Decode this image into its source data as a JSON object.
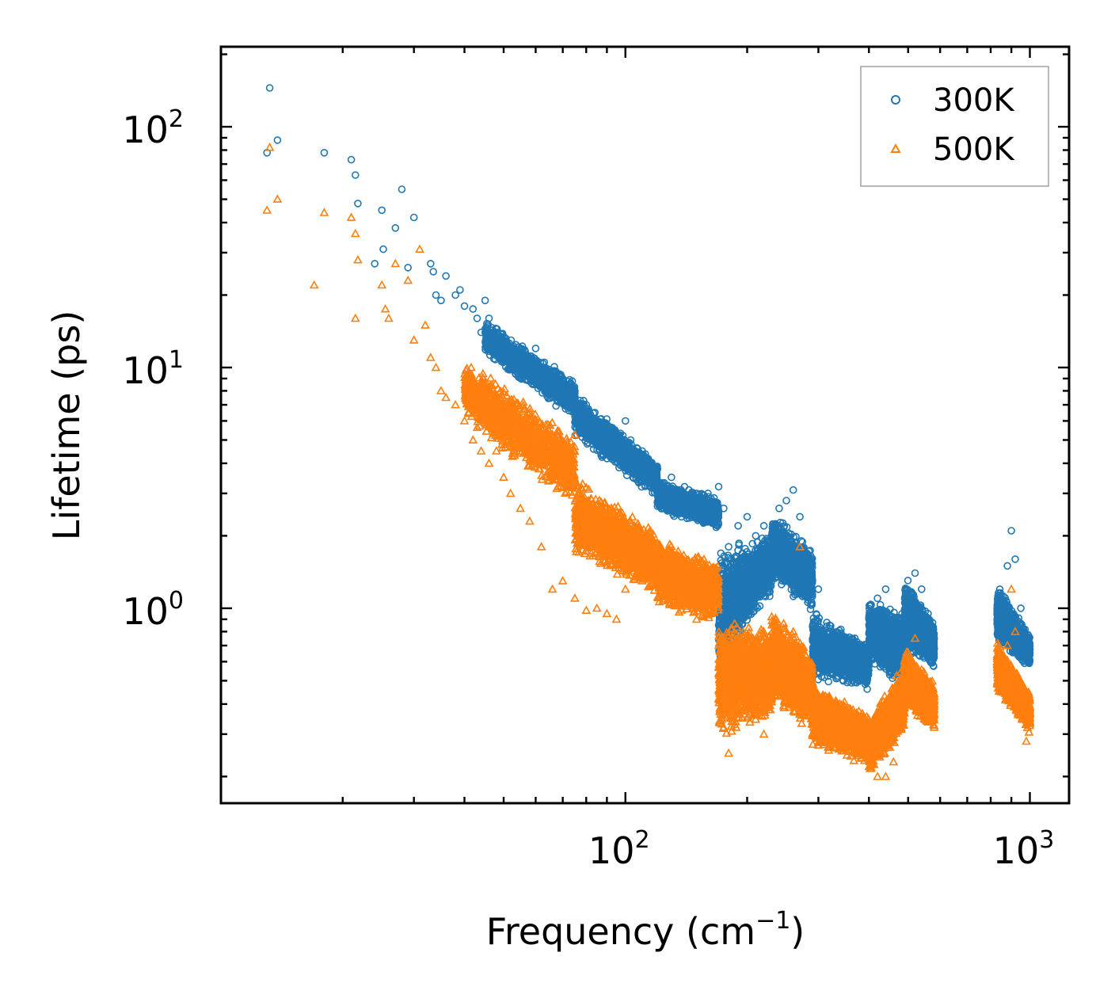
{
  "chart_data": {
    "type": "scatter",
    "title": "",
    "xlabel": "Frequency (cm",
    "xlabel_sup": "−1",
    "xlabel_end": ")",
    "ylabel": "Lifetime (ps)",
    "xscale": "log",
    "yscale": "log",
    "xlim": [
      10,
      1250
    ],
    "ylim": [
      0.155,
      215
    ],
    "x_ticks": [
      {
        "value": 100,
        "base": "10",
        "exp": "2"
      },
      {
        "value": 1000,
        "base": "10",
        "exp": "3"
      }
    ],
    "y_ticks": [
      {
        "value": 1,
        "base": "10",
        "exp": "0"
      },
      {
        "value": 10,
        "base": "10",
        "exp": "1"
      },
      {
        "value": 100,
        "base": "10",
        "exp": "2"
      }
    ],
    "legend": {
      "position": "upper-right"
    },
    "series": [
      {
        "name": "300K",
        "marker": "circle",
        "color": "#1f77b4",
        "points": [
          [
            13.2,
            145
          ],
          [
            13.8,
            88
          ],
          [
            13,
            78
          ],
          [
            18,
            78
          ],
          [
            21,
            73
          ],
          [
            21.5,
            63
          ],
          [
            21.8,
            48
          ],
          [
            24,
            27
          ],
          [
            25,
            45
          ],
          [
            25.2,
            31
          ],
          [
            27,
            38
          ],
          [
            28,
            55
          ],
          [
            29,
            26
          ],
          [
            30,
            42
          ],
          [
            33,
            27
          ],
          [
            33.5,
            25
          ],
          [
            34,
            20
          ],
          [
            35,
            19
          ],
          [
            36,
            24
          ],
          [
            38,
            20
          ],
          [
            39,
            21
          ],
          [
            40,
            18
          ],
          [
            42,
            17.5
          ],
          [
            43,
            16
          ],
          [
            44,
            14
          ],
          [
            45,
            19
          ],
          [
            46,
            16
          ],
          [
            48,
            14
          ],
          [
            50,
            13
          ],
          [
            52,
            12
          ],
          [
            55,
            12
          ],
          [
            58,
            11
          ],
          [
            60,
            12
          ],
          [
            63,
            10
          ],
          [
            66,
            9.5
          ],
          [
            70,
            9
          ],
          [
            75,
            8
          ],
          [
            80,
            7
          ],
          [
            85,
            6
          ],
          [
            90,
            5.5
          ],
          [
            95,
            5
          ],
          [
            100,
            6
          ],
          [
            110,
            4.5
          ],
          [
            115,
            4
          ],
          [
            120,
            3.8
          ],
          [
            130,
            3.5
          ],
          [
            140,
            3.2
          ],
          [
            150,
            3
          ],
          [
            160,
            3
          ],
          [
            170,
            3.2
          ],
          [
            175,
            2.6
          ],
          [
            180,
            1.8
          ],
          [
            190,
            2.2
          ],
          [
            200,
            2.4
          ],
          [
            210,
            2
          ],
          [
            220,
            2.2
          ],
          [
            240,
            2.6
          ],
          [
            250,
            2.8
          ],
          [
            260,
            3.1
          ],
          [
            270,
            2.4
          ],
          [
            280,
            1.6
          ],
          [
            300,
            1.2
          ],
          [
            320,
            0.85
          ],
          [
            340,
            0.7
          ],
          [
            360,
            0.6
          ],
          [
            380,
            0.55
          ],
          [
            400,
            0.9
          ],
          [
            420,
            1.1
          ],
          [
            440,
            1.2
          ],
          [
            460,
            0.9
          ],
          [
            480,
            0.7
          ],
          [
            500,
            1.1
          ],
          [
            520,
            1.4
          ],
          [
            540,
            1.2
          ],
          [
            560,
            0.95
          ],
          [
            580,
            0.75
          ],
          [
            850,
            1
          ],
          [
            880,
            1.5
          ],
          [
            900,
            2.1
          ],
          [
            920,
            1.6
          ],
          [
            950,
            1
          ],
          [
            980,
            0.7
          ]
        ],
        "bands": [
          {
            "f_from": 45,
            "f_to": 75,
            "lo_at_from": 11,
            "hi_at_from": 16,
            "lo_at_to": 6,
            "hi_at_to": 9
          },
          {
            "f_from": 75,
            "f_to": 120,
            "lo_at_from": 5,
            "hi_at_from": 8,
            "lo_at_to": 2.8,
            "hi_at_to": 4.2
          },
          {
            "f_from": 120,
            "f_to": 170,
            "lo_at_from": 2.5,
            "hi_at_from": 3.5,
            "lo_at_to": 2.1,
            "hi_at_to": 2.9
          },
          {
            "f_from": 170,
            "f_to": 230,
            "lo_at_from": 0.5,
            "hi_at_from": 1.9,
            "lo_at_to": 1.1,
            "hi_at_to": 2.1
          },
          {
            "f_from": 230,
            "f_to": 290,
            "lo_at_from": 1.3,
            "hi_at_from": 2.6,
            "lo_at_to": 0.95,
            "hi_at_to": 1.8
          },
          {
            "f_from": 290,
            "f_to": 400,
            "lo_at_from": 0.5,
            "hi_at_from": 1.0,
            "lo_at_to": 0.45,
            "hi_at_to": 0.72
          },
          {
            "f_from": 400,
            "f_to": 490,
            "lo_at_from": 0.6,
            "hi_at_from": 1.1,
            "lo_at_to": 0.45,
            "hi_at_to": 1.0
          },
          {
            "f_from": 490,
            "f_to": 580,
            "lo_at_from": 0.65,
            "hi_at_from": 1.4,
            "lo_at_to": 0.55,
            "hi_at_to": 0.9
          },
          {
            "f_from": 830,
            "f_to": 1000,
            "lo_at_from": 0.7,
            "hi_at_from": 1.3,
            "lo_at_to": 0.55,
            "hi_at_to": 0.8
          }
        ]
      },
      {
        "name": "500K",
        "marker": "triangle",
        "color": "#ff7f0e",
        "points": [
          [
            13.2,
            82
          ],
          [
            13.8,
            50
          ],
          [
            13,
            45
          ],
          [
            18,
            44
          ],
          [
            17,
            22
          ],
          [
            21,
            42
          ],
          [
            21.5,
            36
          ],
          [
            21.8,
            28
          ],
          [
            21.5,
            16
          ],
          [
            25,
            22
          ],
          [
            25.5,
            17.5
          ],
          [
            26,
            16
          ],
          [
            27,
            27
          ],
          [
            29,
            23
          ],
          [
            30,
            13
          ],
          [
            31,
            31
          ],
          [
            32,
            15
          ],
          [
            33,
            11
          ],
          [
            34,
            10
          ],
          [
            35,
            8
          ],
          [
            36,
            7.5
          ],
          [
            38,
            7
          ],
          [
            40,
            6
          ],
          [
            42,
            5
          ],
          [
            44,
            4.5
          ],
          [
            46,
            4
          ],
          [
            48,
            4.5
          ],
          [
            50,
            3.5
          ],
          [
            52,
            3
          ],
          [
            55,
            2.6
          ],
          [
            58,
            2.3
          ],
          [
            62,
            1.8
          ],
          [
            66,
            1.2
          ],
          [
            70,
            1.3
          ],
          [
            75,
            1.1
          ],
          [
            80,
            0.98
          ],
          [
            85,
            1
          ],
          [
            90,
            0.95
          ],
          [
            95,
            0.9
          ],
          [
            100,
            1.2
          ],
          [
            110,
            1.3
          ],
          [
            120,
            1.5
          ],
          [
            130,
            1.3
          ],
          [
            140,
            1.1
          ],
          [
            150,
            0.9
          ],
          [
            160,
            0.95
          ],
          [
            170,
            0.7
          ],
          [
            175,
            0.32
          ],
          [
            180,
            0.25
          ],
          [
            200,
            0.35
          ],
          [
            220,
            0.3
          ],
          [
            240,
            0.5
          ],
          [
            260,
            0.8
          ],
          [
            270,
            1.8
          ],
          [
            280,
            0.4
          ],
          [
            290,
            0.3
          ],
          [
            300,
            0.27
          ],
          [
            330,
            0.28
          ],
          [
            360,
            0.32
          ],
          [
            380,
            0.3
          ],
          [
            400,
            0.22
          ],
          [
            420,
            0.2
          ],
          [
            440,
            0.2
          ],
          [
            460,
            0.23
          ],
          [
            480,
            0.32
          ],
          [
            500,
            0.55
          ],
          [
            520,
            0.75
          ],
          [
            540,
            0.5
          ],
          [
            560,
            0.4
          ],
          [
            580,
            0.32
          ],
          [
            850,
            0.45
          ],
          [
            880,
            0.7
          ],
          [
            900,
            1.2
          ],
          [
            920,
            0.8
          ],
          [
            950,
            0.45
          ],
          [
            980,
            0.28
          ]
        ],
        "bands": [
          {
            "f_from": 40,
            "f_to": 75,
            "lo_at_from": 6,
            "hi_at_from": 11,
            "lo_at_to": 2.5,
            "hi_at_to": 5.5
          },
          {
            "f_from": 75,
            "f_to": 120,
            "lo_at_from": 1.6,
            "hi_at_from": 3.6,
            "lo_at_to": 1.1,
            "hi_at_to": 2.2
          },
          {
            "f_from": 120,
            "f_to": 170,
            "lo_at_from": 1.0,
            "hi_at_from": 2.0,
            "lo_at_to": 0.85,
            "hi_at_to": 1.6
          },
          {
            "f_from": 170,
            "f_to": 230,
            "lo_at_from": 0.28,
            "hi_at_from": 0.95,
            "lo_at_to": 0.32,
            "hi_at_to": 0.85
          },
          {
            "f_from": 230,
            "f_to": 290,
            "lo_at_from": 0.4,
            "hi_at_from": 1.0,
            "lo_at_to": 0.3,
            "hi_at_to": 0.7
          },
          {
            "f_from": 290,
            "f_to": 400,
            "lo_at_from": 0.26,
            "hi_at_from": 0.5,
            "lo_at_to": 0.22,
            "hi_at_to": 0.38
          },
          {
            "f_from": 400,
            "f_to": 490,
            "lo_at_from": 0.2,
            "hi_at_from": 0.35,
            "lo_at_to": 0.3,
            "hi_at_to": 0.6
          },
          {
            "f_from": 490,
            "f_to": 580,
            "lo_at_from": 0.4,
            "hi_at_from": 0.7,
            "lo_at_to": 0.3,
            "hi_at_to": 0.5
          },
          {
            "f_from": 830,
            "f_to": 1000,
            "lo_at_from": 0.45,
            "hi_at_from": 0.75,
            "lo_at_to": 0.3,
            "hi_at_to": 0.45
          }
        ]
      }
    ]
  }
}
